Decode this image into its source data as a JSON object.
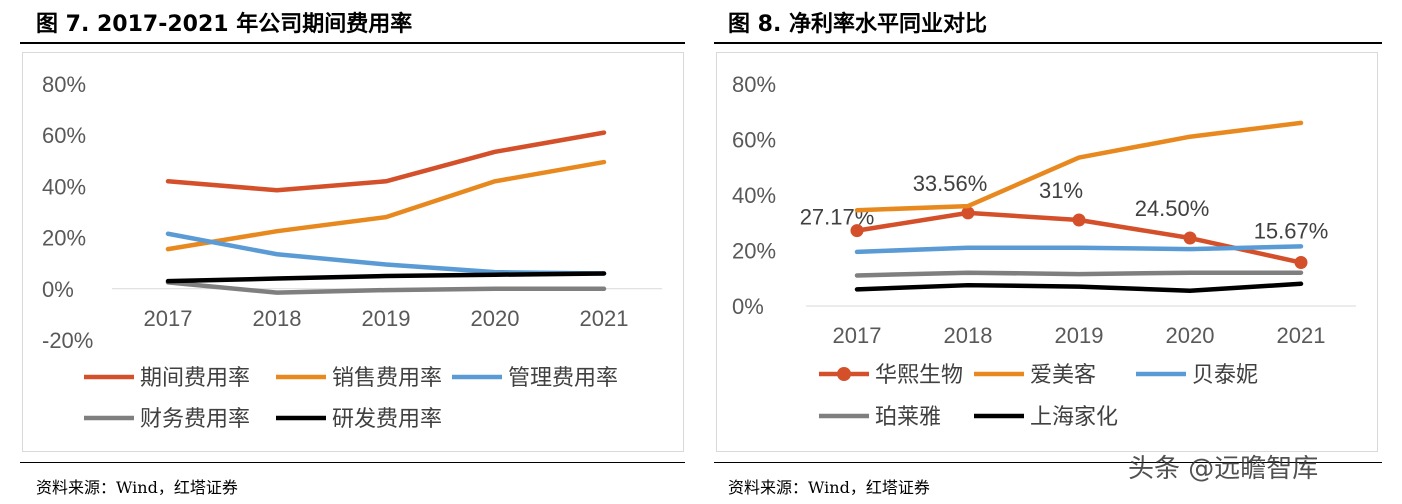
{
  "left": {
    "title": "图 7. 2017-2021 年公司期间费用率",
    "source": "资料来源：Wind，红塔证券"
  },
  "right": {
    "title": "图 8. 净利率水平同业对比",
    "source": "资料来源：Wind，红塔证券"
  },
  "watermark": "头条 @远瞻智库",
  "chart_data": [
    {
      "type": "line",
      "title": "",
      "x": [
        "2017",
        "2018",
        "2019",
        "2020",
        "2021"
      ],
      "ylim": [
        -20,
        80
      ],
      "yticks": [
        "80%",
        "60%",
        "40%",
        "20%",
        "0%",
        "-20%"
      ],
      "grid": false,
      "legend_position": "bottom",
      "series": [
        {
          "name": "期间费用率",
          "color": "#d4502b",
          "values": [
            42,
            38.5,
            42,
            53.5,
            61
          ]
        },
        {
          "name": "销售费用率",
          "color": "#e8891f",
          "values": [
            15.5,
            22.5,
            28,
            42,
            49.5
          ]
        },
        {
          "name": "管理费用率",
          "color": "#5b9bd5",
          "values": [
            21.5,
            13.5,
            9.5,
            6.5,
            6
          ]
        },
        {
          "name": "财务费用率",
          "color": "#7f7f7f",
          "values": [
            2.5,
            -1.5,
            -0.5,
            0,
            0
          ]
        },
        {
          "name": "研发费用率",
          "color": "#000000",
          "values": [
            3,
            4,
            5,
            5.5,
            6
          ]
        }
      ]
    },
    {
      "type": "line",
      "title": "",
      "x": [
        "2017",
        "2018",
        "2019",
        "2020",
        "2021"
      ],
      "ylim": [
        0,
        80
      ],
      "yticks": [
        "80%",
        "60%",
        "40%",
        "20%",
        "0%"
      ],
      "grid": false,
      "legend_position": "bottom",
      "series": [
        {
          "name": "华熙生物",
          "color": "#d4502b",
          "markers": true,
          "values": [
            27.17,
            33.56,
            31,
            24.5,
            15.67
          ],
          "labels": [
            "27.17%",
            "33.56%",
            "31%",
            "24.50%",
            "15.67%"
          ]
        },
        {
          "name": "爱美客",
          "color": "#e8891f",
          "values": [
            34.5,
            36,
            53.5,
            61,
            66
          ]
        },
        {
          "name": "贝泰妮",
          "color": "#5b9bd5",
          "values": [
            19.5,
            21,
            21,
            20.5,
            21.5
          ]
        },
        {
          "name": "珀莱雅",
          "color": "#7f7f7f",
          "values": [
            11,
            12,
            11.5,
            12,
            12
          ]
        },
        {
          "name": "上海家化",
          "color": "#000000",
          "values": [
            6,
            7.5,
            7,
            5.5,
            8
          ]
        }
      ]
    }
  ]
}
